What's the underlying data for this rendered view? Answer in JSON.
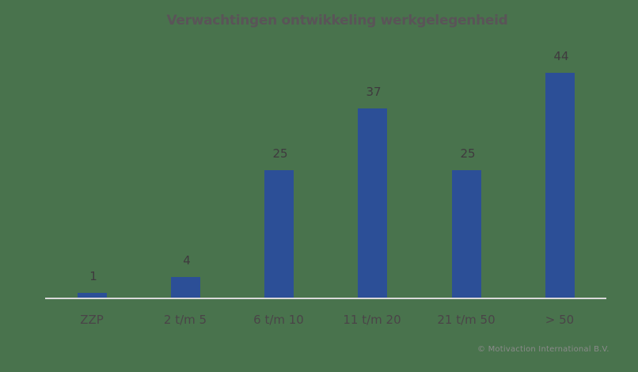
{
  "chart_data": {
    "type": "bar",
    "title": "Verwachtingen ontwikkeling werkgelegenheid",
    "categories": [
      "ZZP",
      "2 t/m 5",
      "6 t/m 10",
      "11 t/m 20",
      "21 t/m 50",
      "> 50"
    ],
    "values": [
      1,
      4,
      25,
      37,
      25,
      44
    ],
    "value_labels": [
      "1",
      "4",
      "25",
      "37",
      "25",
      "44"
    ],
    "xlabel": "",
    "ylabel": "",
    "ylim": [
      0,
      44
    ],
    "grid": false,
    "legend": null,
    "data_labels": true,
    "colors": {
      "bar": "#2c4f97",
      "background": "#49734d",
      "axis": "#d9d9d9"
    }
  },
  "footer": {
    "copyright": "© Motivaction International B.V."
  }
}
